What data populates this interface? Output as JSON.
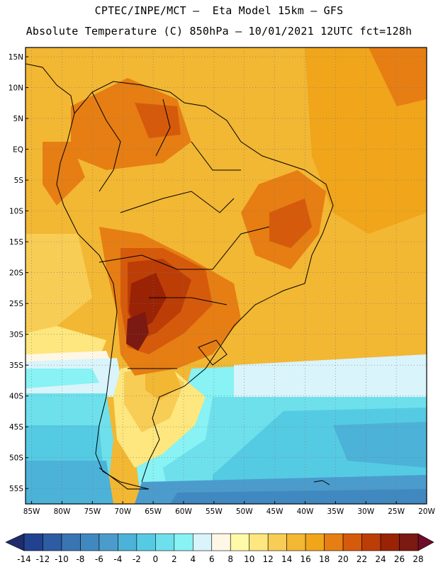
{
  "header": {
    "line1": "CPTEC/INPE/MCT –  Eta Model 15km – GFS",
    "line2": "Absolute Temperature (C) 850hPa – 10/01/2021 12UTC fct=128h"
  },
  "map": {
    "lat_labels": [
      "15N",
      "10N",
      "5N",
      "EQ",
      "5S",
      "10S",
      "15S",
      "20S",
      "25S",
      "30S",
      "35S",
      "40S",
      "45S",
      "50S",
      "55S"
    ],
    "lon_labels": [
      "85W",
      "80W",
      "75W",
      "70W",
      "65W",
      "60W",
      "55W",
      "50W",
      "45W",
      "40W",
      "35W",
      "30W",
      "25W",
      "20W"
    ],
    "lat_values": [
      15,
      10,
      5,
      0,
      -5,
      -10,
      -15,
      -20,
      -25,
      -30,
      -35,
      -40,
      -45,
      -50,
      -55
    ],
    "lon_values": [
      -85,
      -80,
      -75,
      -70,
      -65,
      -60,
      -55,
      -50,
      -45,
      -40,
      -35,
      -30,
      -25,
      -20
    ],
    "extent": {
      "lon_min": -86,
      "lon_max": -20,
      "lat_min": -57.5,
      "lat_max": 16.5
    }
  },
  "colorbar": {
    "labels": [
      "-14",
      "-12",
      "-10",
      "-8",
      "-6",
      "-4",
      "-2",
      "0",
      "2",
      "4",
      "6",
      "8",
      "10",
      "12",
      "14",
      "16",
      "18",
      "20",
      "22",
      "24",
      "26",
      "28"
    ],
    "colors": [
      "#22428f",
      "#2d5ca3",
      "#3974b3",
      "#4088c0",
      "#4b9ccc",
      "#4cb2d8",
      "#55cbe3",
      "#6ee0ec",
      "#88f2f4",
      "#d9f4fa",
      "#fff7e6",
      "#fffaa8",
      "#fde77e",
      "#f8cd55",
      "#f2b733",
      "#f0a51b",
      "#e67e13",
      "#d65a0b",
      "#bc3e06",
      "#9a2205",
      "#7a1a12"
    ],
    "under_color": "#1f2c6b",
    "over_color": "#6e0c2a"
  }
}
